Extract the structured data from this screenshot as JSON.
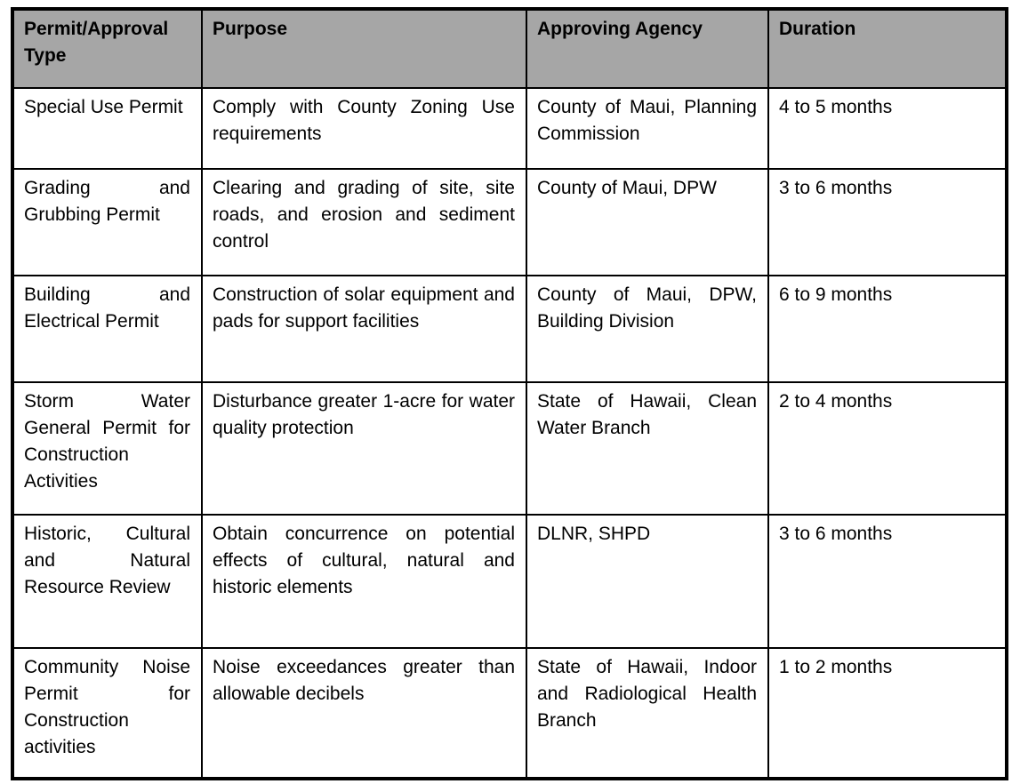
{
  "colors": {
    "header_bg": "#a6a6a6",
    "border": "#000000",
    "text": "#000000"
  },
  "table": {
    "headers": [
      "Permit/Approval Type",
      "Purpose",
      "Approving Agency",
      "Duration"
    ],
    "rows": [
      {
        "type": "Special Use Permit",
        "purpose": "Comply with County Zoning Use requirements",
        "agency": "County of Maui, Planning Commission",
        "duration": "4 to 5 months"
      },
      {
        "type": "Grading and Grubbing Permit",
        "purpose": "Clearing and grading of site, site roads, and erosion and sediment control",
        "agency": "County of Maui, DPW",
        "duration": "3 to 6 months"
      },
      {
        "type": "Building and Electrical Permit",
        "purpose": "Construction of solar equipment and pads for support facilities",
        "agency": "County of Maui, DPW, Building Division",
        "duration": "6 to 9 months"
      },
      {
        "type": "Storm Water General Permit for Construction Activities",
        "purpose": "Disturbance greater 1-acre for water quality protection",
        "agency": "State of Hawaii, Clean Water Branch",
        "duration": "2 to 4 months"
      },
      {
        "type": "Historic, Cultural and Natural Resource Review",
        "purpose": "Obtain concurrence on potential effects of cultural, natural and historic elements",
        "agency": "DLNR, SHPD",
        "duration": "3 to 6 months"
      },
      {
        "type": "Community Noise Permit for Construction activities",
        "purpose": "Noise exceedances greater than allowable decibels",
        "agency": "State of Hawaii, Indoor and Radiological Health Branch",
        "duration": "1 to 2 months"
      }
    ]
  }
}
